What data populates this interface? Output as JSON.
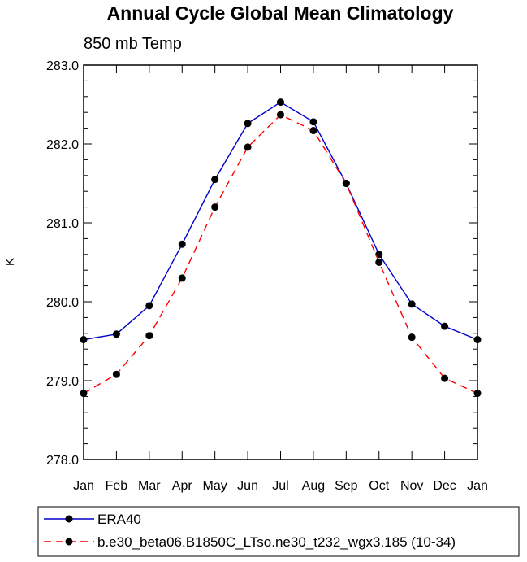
{
  "chart_data": {
    "type": "line",
    "title": "Annual Cycle Global Mean Climatology",
    "subtitle": "850 mb Temp",
    "ylabel": "K",
    "xlabel": "",
    "categories": [
      "Jan",
      "Feb",
      "Mar",
      "Apr",
      "May",
      "Jun",
      "Jul",
      "Aug",
      "Sep",
      "Oct",
      "Nov",
      "Dec",
      "Jan"
    ],
    "ylim": [
      278.0,
      283.0
    ],
    "yticks": [
      "278.0",
      "279.0",
      "280.0",
      "281.0",
      "282.0",
      "283.0"
    ],
    "series": [
      {
        "name": "ERA40",
        "color": "#0000cc",
        "dash": "solid",
        "values": [
          279.52,
          279.59,
          279.95,
          280.73,
          281.55,
          282.26,
          282.53,
          282.28,
          281.5,
          280.6,
          279.97,
          279.69,
          279.52
        ]
      },
      {
        "name": "b.e30_beta06.B1850C_LTso.ne30_t232_wgx3.185 (10-34)",
        "color": "#ff0000",
        "dash": "dashed",
        "values": [
          278.84,
          279.08,
          279.57,
          280.3,
          281.2,
          281.96,
          282.37,
          282.17,
          281.5,
          280.5,
          279.55,
          279.03,
          278.84
        ]
      }
    ],
    "legend_position": "bottom"
  }
}
